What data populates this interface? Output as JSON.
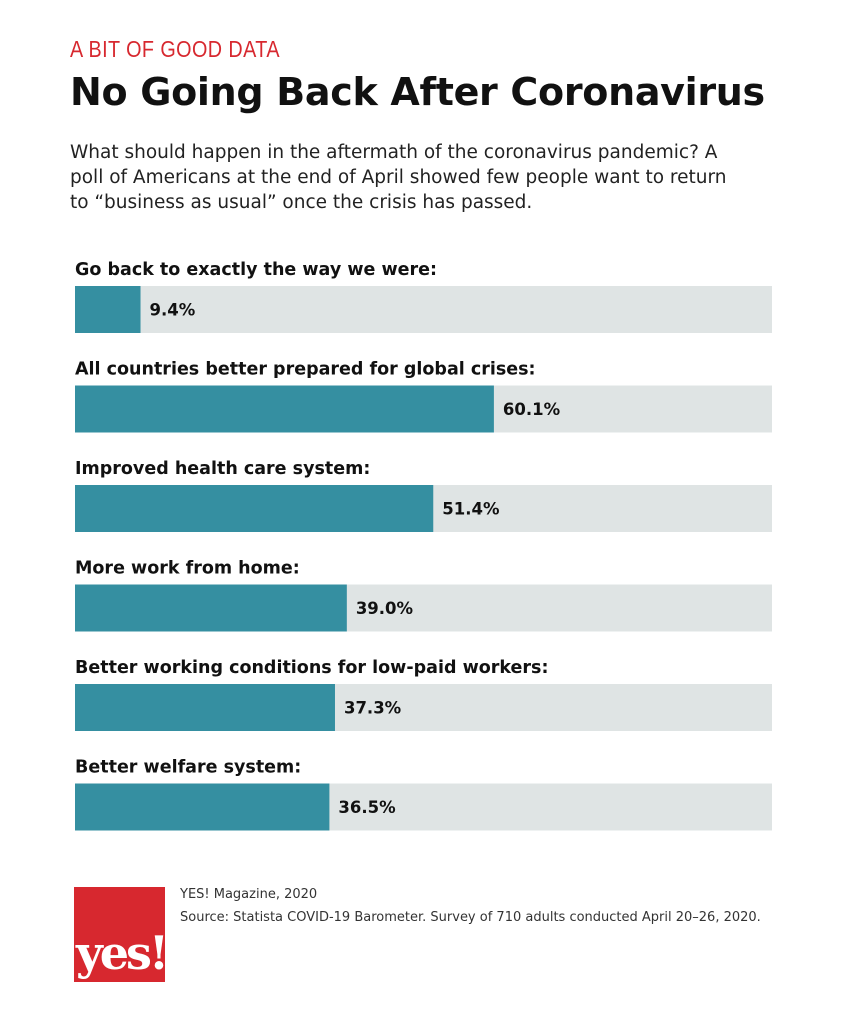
{
  "header": {
    "kicker": "A BIT OF GOOD DATA",
    "title": "No Going Back After Coronavirus",
    "subtitle": "What should happen in the aftermath of the coronavirus pandemic? A poll of Americans at the end of April showed few people want to return to “business as usual” once the crisis has passed."
  },
  "colors": {
    "bar": "#358fa1",
    "track": "#dfe4e4",
    "accent": "#d7282f"
  },
  "chart_data": {
    "type": "bar",
    "orientation": "horizontal",
    "categories": [
      "Go back to exactly the way we were:",
      "All countries better prepared for global crises:",
      "Improved health care system:",
      "More work from home:",
      "Better working conditions for low-paid workers:",
      "Better welfare system:"
    ],
    "values": [
      9.4,
      60.1,
      51.4,
      39.0,
      37.3,
      36.5
    ],
    "value_labels": [
      "9.4%",
      "60.1%",
      "51.4%",
      "39.0%",
      "37.3%",
      "36.5%"
    ],
    "xlim": [
      0,
      100
    ],
    "grid": false,
    "legend": "none"
  },
  "footer": {
    "logo_text": "yes!",
    "credit": "YES! Magazine, 2020",
    "source": "Source: Statista COVID-19 Barometer. Survey of 710 adults conducted April 20–26, 2020."
  }
}
